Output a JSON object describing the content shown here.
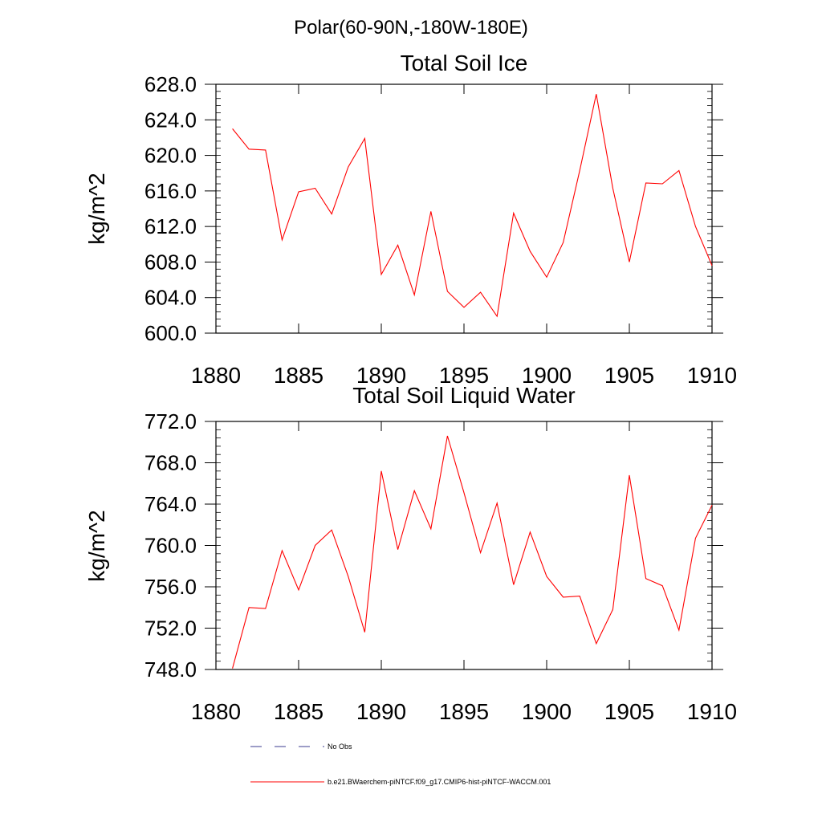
{
  "page": {
    "title": "Polar(60-90N,-180W-180E)"
  },
  "colors": {
    "series_line": "#ff0000",
    "obs_line": "#3b3b8f",
    "axes": "#000000",
    "background": "#ffffff"
  },
  "legend": {
    "entries": [
      {
        "label": "No Obs",
        "style": "dashed",
        "color": "#3b3b8f"
      },
      {
        "label": "b.e21.BWaerchem-piNTCF.f09_g17.CMIP6-hist-piNTCF-WACCM.001",
        "style": "solid",
        "color": "#ff0000"
      }
    ]
  },
  "chart_data": [
    {
      "type": "line",
      "title": "Total Soil Ice",
      "xlabel": "",
      "ylabel": "kg/m^2",
      "xlim": [
        1880,
        1910
      ],
      "ylim": [
        600,
        628
      ],
      "x_major_ticks": [
        1880,
        1885,
        1890,
        1895,
        1900,
        1905,
        1910
      ],
      "x_tick_labels": [
        "1880",
        "1885",
        "1890",
        "1895",
        "1900",
        "1905",
        "1910"
      ],
      "y_major_ticks": [
        600,
        604,
        608,
        612,
        616,
        620,
        624,
        628
      ],
      "y_tick_labels": [
        "600.0",
        "604.0",
        "608.0",
        "612.0",
        "616.0",
        "620.0",
        "624.0",
        "628.0"
      ],
      "grid": false,
      "series": [
        {
          "name": "b.e21.BWaerchem-piNTCF.f09_g17.CMIP6-hist-piNTCF-WACCM.001",
          "x": [
            1881,
            1882,
            1883,
            1884,
            1885,
            1886,
            1887,
            1888,
            1889,
            1890,
            1891,
            1892,
            1893,
            1894,
            1895,
            1896,
            1897,
            1898,
            1899,
            1900,
            1901,
            1902,
            1903,
            1904,
            1905,
            1906,
            1907,
            1908,
            1909,
            1910
          ],
          "values": [
            623.0,
            620.7,
            620.6,
            610.5,
            615.9,
            616.3,
            613.4,
            618.7,
            621.9,
            606.6,
            609.9,
            604.3,
            613.7,
            604.7,
            602.9,
            604.6,
            601.9,
            613.5,
            609.2,
            606.3,
            610.2,
            618.3,
            626.9,
            616.3,
            608.0,
            616.9,
            616.8,
            618.3,
            612.0,
            607.6
          ]
        }
      ]
    },
    {
      "type": "line",
      "title": "Total Soil Liquid Water",
      "xlabel": "",
      "ylabel": "kg/m^2",
      "xlim": [
        1880,
        1910
      ],
      "ylim": [
        748,
        772
      ],
      "x_major_ticks": [
        1880,
        1885,
        1890,
        1895,
        1900,
        1905,
        1910
      ],
      "x_tick_labels": [
        "1880",
        "1885",
        "1890",
        "1895",
        "1900",
        "1905",
        "1910"
      ],
      "y_major_ticks": [
        748,
        752,
        756,
        760,
        764,
        768,
        772
      ],
      "y_tick_labels": [
        "748.0",
        "752.0",
        "756.0",
        "760.0",
        "764.0",
        "768.0",
        "772.0"
      ],
      "grid": false,
      "series": [
        {
          "name": "b.e21.BWaerchem-piNTCF.f09_g17.CMIP6-hist-piNTCF-WACCM.001",
          "x": [
            1881,
            1882,
            1883,
            1884,
            1885,
            1886,
            1887,
            1888,
            1889,
            1890,
            1891,
            1892,
            1893,
            1894,
            1895,
            1896,
            1897,
            1898,
            1899,
            1900,
            1901,
            1902,
            1903,
            1904,
            1905,
            1906,
            1907,
            1908,
            1909,
            1910
          ],
          "values": [
            748.1,
            754.0,
            753.9,
            759.5,
            755.7,
            760.0,
            761.5,
            757.0,
            751.6,
            767.2,
            759.6,
            765.3,
            761.6,
            770.6,
            765.1,
            759.3,
            764.1,
            756.2,
            761.3,
            757.0,
            755.0,
            755.1,
            750.5,
            753.8,
            766.8,
            756.8,
            756.1,
            751.8,
            760.7,
            763.9
          ]
        }
      ]
    }
  ]
}
